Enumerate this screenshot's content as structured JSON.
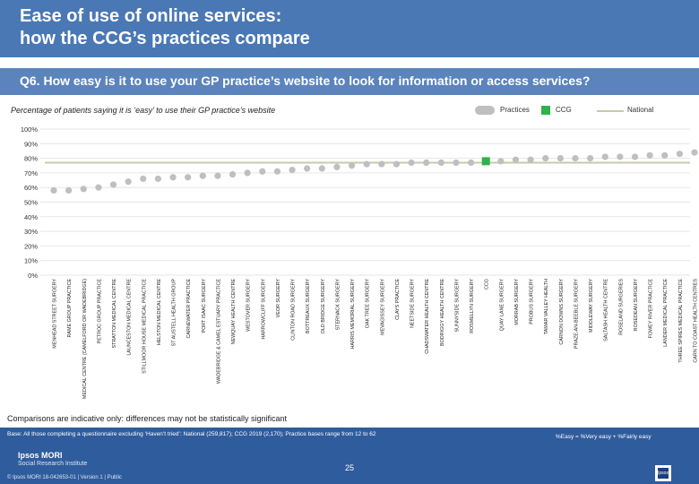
{
  "header": {
    "title_line1": "Ease of use of online services:",
    "title_line2": "how the CCG’s practices compare"
  },
  "question": "Q6. How easy is it to use your GP practice’s website to look for information or access services?",
  "subtitle": "Percentage of patients saying it is ‘easy’ to use their GP practice’s website",
  "legend": {
    "practices": "Practices",
    "ccg": "CCG",
    "national": "National"
  },
  "colors": {
    "practice": "#bfbfbf",
    "ccg": "#2fb24a",
    "national": "#c9c9a8",
    "header": "#4a78b4",
    "footer": "#2f5c9c"
  },
  "chart_data": {
    "type": "scatter",
    "title": "Percentage of patients saying it is ‘easy’ to use their GP practice’s website",
    "ylim": [
      0,
      100
    ],
    "y_ticks": [
      "0%",
      "10%",
      "20%",
      "30%",
      "40%",
      "50%",
      "60%",
      "70%",
      "80%",
      "90%",
      "100%"
    ],
    "national_value": 77,
    "ccg_label": "CCG",
    "categories": [
      "MENHEAD STREET SURGERY",
      "RAME GROUP PRACTICE",
      "MEDICAL CENTRE (CAMELFORD OR WADEBRIDGE)",
      "PETROC GROUP PRACTICE",
      "STRATTON MEDICAL CENTRE",
      "LAUNCESTON MEDICAL CENTRE",
      "STILLMOOR HOUSE MEDICAL PRACTICE",
      "HELSTON MEDICAL CENTRE",
      "ST AUSTELL HEALTH GROUP",
      "CARNEWATER PRACTICE",
      "PORT ISAAC SURGERY",
      "WADEBRIDGE & CAMEL ESTUARY PRACTICE",
      "NEWQUAY HEALTH CENTRE",
      "WESTOVER SURGERY",
      "HARROWCLIFF SURGERY",
      "VEOR SURGERY",
      "CLINTON ROAD SURGERY",
      "BOTTREAUX SURGERY",
      "OLD BRIDGE SURGERY",
      "STERNACK SURGERY",
      "HARRIS MEMORIAL SURGERY",
      "OAK TREE SURGERY",
      "MEVAGISSEY SURGERY",
      "CLAYS PRACTICE",
      "NEETSIDE SURGERY",
      "CHADSWATER HEALTH CENTRE",
      "BODRIGGY HEALTH CENTRE",
      "SUNNYSIDE SURGERY",
      "ROSMELLYN SURGERY",
      "CCG",
      "QUAY LANE SURGERY",
      "MORRAB SURGERY",
      "PROBUS SURGERY",
      "TAMAR VALLEY HEALTH",
      "CARNON DOWNS SURGERY",
      "PRAZE-AN-BEEBLE SURGERY",
      "MIDDLEWAY SURGERY",
      "SALTASH HEALTH CENTRE",
      "ROSELAND SURGERIES",
      "ROSEDEAN SURGERY",
      "FOWEY RIVER PRACTICE",
      "LANDER MEDICAL PRACTICE",
      "THREE SPIRES MEDICAL PRACTICE",
      "CARN TO COAST HEALTH CENTRES"
    ],
    "values": [
      58,
      58,
      59,
      60,
      62,
      64,
      66,
      66,
      67,
      67,
      68,
      68,
      69,
      70,
      71,
      71,
      72,
      73,
      73,
      74,
      75,
      76,
      76,
      76,
      77,
      77,
      77,
      77,
      77,
      78,
      78,
      79,
      79,
      80,
      80,
      80,
      80,
      81,
      81,
      81,
      82,
      82,
      83,
      84
    ]
  },
  "footer": {
    "note": "Comparisons are indicative only: differences may not be statistically significant",
    "base": "Base: All those completing a questionnaire excluding ‘Haven’t tried’: National (259,817); CCG 2019 (2,170); Practice bases range from 12 to 62",
    "formula": "%Easy = %Very easy + %Fairly easy",
    "logo_line1": "Ipsos MORI",
    "logo_line2": "Social Research Institute",
    "copyright": "© Ipsos MORI     18-042653-01 | Version 1 | Public",
    "page": "25",
    "ipsos_badge": "Ipsos"
  }
}
